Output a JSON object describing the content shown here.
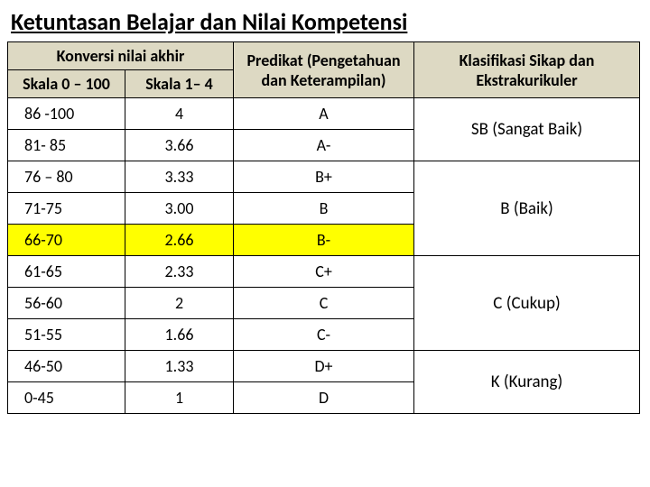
{
  "title": "Ketuntasan Belajar dan Nilai Kompetensi",
  "headers": {
    "konversi": "Konversi nilai akhir",
    "skala100": "Skala 0 – 100",
    "skala4": "Skala 1– 4",
    "predikat": "Predikat (Pengetahuan dan Keterampilan)",
    "klasifikasi": "Klasifikasi Sikap dan Ekstrakurikuler"
  },
  "rows": [
    {
      "s100": "86 -100",
      "s4": "4",
      "pred": "A",
      "hl": false
    },
    {
      "s100": "81- 85",
      "s4": "3.66",
      "pred": "A-",
      "hl": false
    },
    {
      "s100": "76 – 80",
      "s4": "3.33",
      "pred": "B+",
      "hl": false
    },
    {
      "s100": "71-75",
      "s4": "3.00",
      "pred": "B",
      "hl": false
    },
    {
      "s100": "66-70",
      "s4": "2.66",
      "pred": "B-",
      "hl": true
    },
    {
      "s100": "61-65",
      "s4": "2.33",
      "pred": "C+",
      "hl": false
    },
    {
      "s100": "56-60",
      "s4": "2",
      "pred": "C",
      "hl": false
    },
    {
      "s100": "51-55",
      "s4": "1.66",
      "pred": "C-",
      "hl": false
    },
    {
      "s100": "46-50",
      "s4": "1.33",
      "pred": "D+",
      "hl": false
    },
    {
      "s100": "0-45",
      "s4": "1",
      "pred": "D",
      "hl": false
    }
  ],
  "klas": {
    "sb": "SB (Sangat Baik)",
    "b": "B (Baik)",
    "c": "C (Cukup)",
    "k": "K (Kurang)"
  }
}
